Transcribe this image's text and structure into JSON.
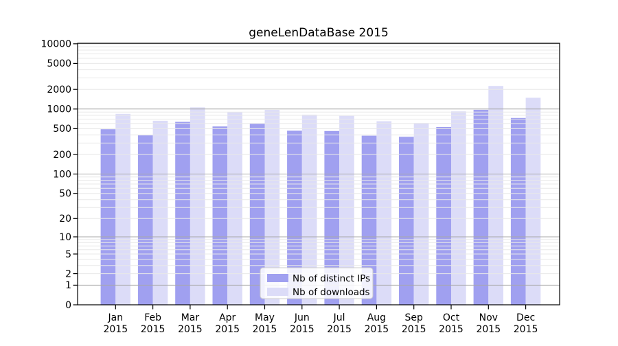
{
  "figure": {
    "background": "#ffffff"
  },
  "chart_data": {
    "type": "bar",
    "title": "geneLenDataBase 2015",
    "year": "2015",
    "categories": [
      "Jan",
      "Feb",
      "Mar",
      "Apr",
      "May",
      "Jun",
      "Jul",
      "Aug",
      "Sep",
      "Oct",
      "Nov",
      "Dec"
    ],
    "series": [
      {
        "key": "distinct-ips",
        "name": "Nb of distinct IPs",
        "color": "#a0a0f0",
        "values": [
          490,
          395,
          635,
          540,
          600,
          465,
          460,
          390,
          375,
          530,
          975,
          730
        ]
      },
      {
        "key": "downloads",
        "name": "Nb of downloads",
        "color": "#dcdcf8",
        "values": [
          845,
          660,
          1060,
          890,
          970,
          820,
          785,
          650,
          610,
          920,
          2260,
          1490
        ]
      }
    ],
    "y_ticks": [
      0,
      1,
      2,
      5,
      10,
      20,
      50,
      100,
      200,
      500,
      1000,
      2000,
      5000,
      10000
    ],
    "ylim": [
      0,
      10000
    ],
    "y_scale": "log1p",
    "grid": {
      "orientation": "horizontal",
      "major_levels": [
        1,
        10,
        100,
        1000,
        10000
      ],
      "minor_mantissas": [
        2,
        3,
        4,
        5,
        6,
        7,
        8,
        9
      ],
      "major_color": "#a8a8a8",
      "minor_color": "#e8e8e8"
    },
    "legend": {
      "position": "bottom-center",
      "entries": [
        "Nb of distinct IPs",
        "Nb of downloads"
      ]
    }
  }
}
